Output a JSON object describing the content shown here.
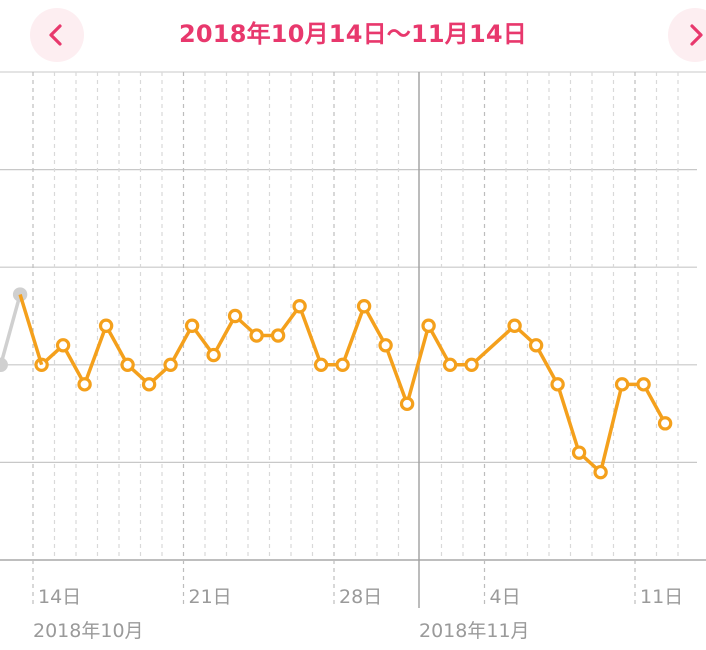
{
  "header": {
    "title": "2018年10月14日〜11月14日",
    "prev_icon": "chevron-left-icon",
    "next_icon": "chevron-right-icon"
  },
  "colors": {
    "accent": "#e8386d",
    "series": "#f4a01c",
    "series_faded": "#d0d0d0",
    "grid": "#c8c8c8",
    "tick_text": "#9a9a9a"
  },
  "chart_data": {
    "type": "line",
    "x_axis": {
      "tick_labels": [
        {
          "day": 14,
          "label": "14日"
        },
        {
          "day": 21,
          "label": "21日"
        },
        {
          "day": 28,
          "label": "28日"
        },
        {
          "day": 35,
          "label": "4日"
        },
        {
          "day": 42,
          "label": "11日"
        }
      ],
      "month_labels": [
        {
          "day": 14,
          "label": "2018年10月"
        },
        {
          "day": 32,
          "label": "2018年11月"
        }
      ],
      "month_boundary_day": 32
    },
    "grid": true,
    "series": [
      {
        "style": "faded",
        "points": [
          {
            "day": 12.5,
            "y": 30.0
          },
          {
            "day": 13.4,
            "y": 33.6
          }
        ]
      },
      {
        "style": "main",
        "points": [
          {
            "day": 14.4,
            "y": 30.0
          },
          {
            "day": 15.4,
            "y": 31.0
          },
          {
            "day": 16.4,
            "y": 29.0
          },
          {
            "day": 17.4,
            "y": 32.0
          },
          {
            "day": 18.4,
            "y": 30.0
          },
          {
            "day": 19.4,
            "y": 29.0
          },
          {
            "day": 20.4,
            "y": 30.0
          },
          {
            "day": 21.4,
            "y": 32.0
          },
          {
            "day": 22.4,
            "y": 30.5
          },
          {
            "day": 23.4,
            "y": 32.5
          },
          {
            "day": 24.4,
            "y": 31.5
          },
          {
            "day": 25.4,
            "y": 31.5
          },
          {
            "day": 26.4,
            "y": 33.0
          },
          {
            "day": 27.4,
            "y": 30.0
          },
          {
            "day": 28.4,
            "y": 30.0
          },
          {
            "day": 29.4,
            "y": 33.0
          },
          {
            "day": 30.4,
            "y": 31.0
          },
          {
            "day": 31.4,
            "y": 28.0
          },
          {
            "day": 32.4,
            "y": 32.0
          },
          {
            "day": 33.4,
            "y": 30.0
          },
          {
            "day": 34.4,
            "y": 30.0
          },
          {
            "day": 36.4,
            "y": 32.0
          },
          {
            "day": 37.4,
            "y": 31.0
          },
          {
            "day": 38.4,
            "y": 29.0
          },
          {
            "day": 39.4,
            "y": 25.5
          },
          {
            "day": 40.4,
            "y": 24.5
          },
          {
            "day": 41.4,
            "y": 29.0
          },
          {
            "day": 42.4,
            "y": 29.0
          },
          {
            "day": 43.4,
            "y": 27.0
          }
        ]
      }
    ]
  }
}
